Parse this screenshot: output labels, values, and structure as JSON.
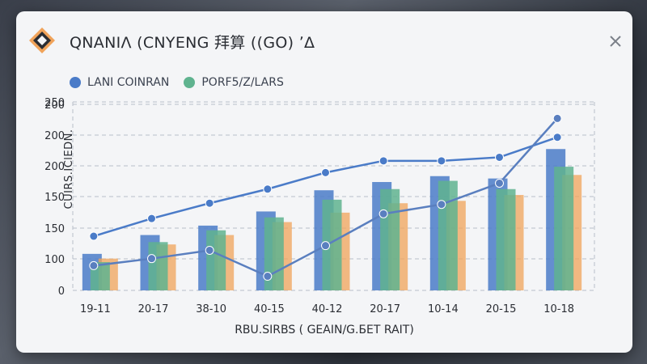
{
  "window": {
    "title": "QNANIΛ (CNYENG 拜算 ((GO) ʼΔ",
    "close_icon": "close-icon",
    "logo_icon": "diamond-logo-icon"
  },
  "colors": {
    "blue": "#4a7bc8",
    "green": "#5fb38f",
    "orange": "#f0a35a",
    "grid": "#b9bec8"
  },
  "chart_data": {
    "type": "bar",
    "categories": [
      "19-11",
      "20-17",
      "38-10",
      "40-15",
      "40-12",
      "20-17",
      "10-14",
      "20-15",
      "10-18"
    ],
    "ytick_labels": [
      "0",
      "100",
      "150",
      "150",
      "200",
      "200",
      "200",
      "250"
    ],
    "xlabel": "RBU.SIRBS ( GEAIN/G.ƂET RAIT)",
    "ylabel": "CUIRS.IClEDN.",
    "legend": [
      {
        "name": "LANI COINRAN",
        "color": "#4a7bc8"
      },
      {
        "name": "PORF5/Z/LARS",
        "color": "#5fb38f"
      }
    ],
    "grid": true,
    "legend_position": "top-left",
    "series": [
      {
        "name": "LANI COINRAN",
        "kind": "bar",
        "values": [
          0.31,
          0.47,
          0.55,
          0.67,
          0.85,
          0.92,
          0.97,
          0.95,
          1.2
        ]
      },
      {
        "name": "PORF5/Z/LARS",
        "kind": "bar",
        "values": [
          0.24,
          0.41,
          0.51,
          0.62,
          0.77,
          0.86,
          0.93,
          0.86,
          1.05
        ]
      },
      {
        "kind": "bar",
        "values": [
          0.27,
          0.39,
          0.47,
          0.58,
          0.66,
          0.74,
          0.76,
          0.81,
          0.98
        ]
      },
      {
        "kind": "line",
        "values": [
          0.46,
          0.61,
          0.74,
          0.86,
          1.0,
          1.1,
          1.1,
          1.13,
          1.3
        ]
      },
      {
        "kind": "line",
        "values": [
          0.21,
          0.27,
          0.34,
          0.12,
          0.38,
          0.65,
          0.73,
          0.91,
          1.46
        ]
      }
    ]
  }
}
